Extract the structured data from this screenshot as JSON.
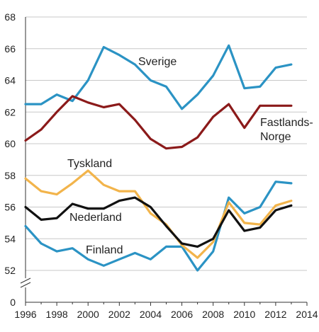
{
  "chart_data": {
    "type": "line",
    "title": "",
    "xlabel": "",
    "ylabel": "",
    "xlim": [
      1996,
      2014
    ],
    "ylim": [
      52,
      68
    ],
    "y_axis_break": true,
    "y_axis_break_label": "0",
    "x_ticks": [
      "1996",
      "1998",
      "2000",
      "2002",
      "2004",
      "2006",
      "2008",
      "2010",
      "2012",
      "2014"
    ],
    "y_ticks": [
      "52",
      "54",
      "56",
      "58",
      "60",
      "62",
      "64",
      "66",
      "68"
    ],
    "grid": "horizontal",
    "x": [
      1996,
      1997,
      1998,
      1999,
      2000,
      2001,
      2002,
      2003,
      2004,
      2005,
      2006,
      2007,
      2008,
      2009,
      2010,
      2011,
      2012,
      2013
    ],
    "series": [
      {
        "name": "Sverige",
        "color": "#2b93c4",
        "values": [
          62.5,
          62.5,
          63.1,
          62.7,
          64.0,
          66.1,
          65.6,
          65.0,
          64.0,
          63.6,
          62.2,
          63.1,
          64.3,
          66.2,
          63.5,
          63.6,
          64.8,
          65.0
        ]
      },
      {
        "name": "Fastlands-Norge",
        "label_lines": [
          "Fastlands-",
          "Norge"
        ],
        "color": "#8b1a1a",
        "values": [
          60.2,
          60.9,
          62.0,
          63.0,
          62.6,
          62.3,
          62.5,
          61.5,
          60.3,
          59.7,
          59.8,
          60.4,
          61.7,
          62.5,
          61.0,
          62.4,
          62.4,
          62.4
        ]
      },
      {
        "name": "Tyskland",
        "color": "#f2b44b",
        "values": [
          57.8,
          57.0,
          56.8,
          57.5,
          58.3,
          57.4,
          57.0,
          57.0,
          55.6,
          54.9,
          53.6,
          52.8,
          53.8,
          56.3,
          55.0,
          54.9,
          56.1,
          56.4
        ]
      },
      {
        "name": "Nederland",
        "color": "#111111",
        "values": [
          56.0,
          55.2,
          55.3,
          56.2,
          55.9,
          55.9,
          56.4,
          56.6,
          56.0,
          54.8,
          53.7,
          53.5,
          54.0,
          55.8,
          54.5,
          54.7,
          55.8,
          56.1
        ]
      },
      {
        "name": "Finland",
        "color": "#2b93c4",
        "values": [
          54.8,
          53.7,
          53.2,
          53.4,
          52.7,
          52.3,
          52.7,
          53.1,
          52.7,
          53.5,
          53.5,
          52.0,
          53.2,
          56.6,
          55.6,
          56.0,
          57.6,
          57.5
        ]
      }
    ]
  }
}
